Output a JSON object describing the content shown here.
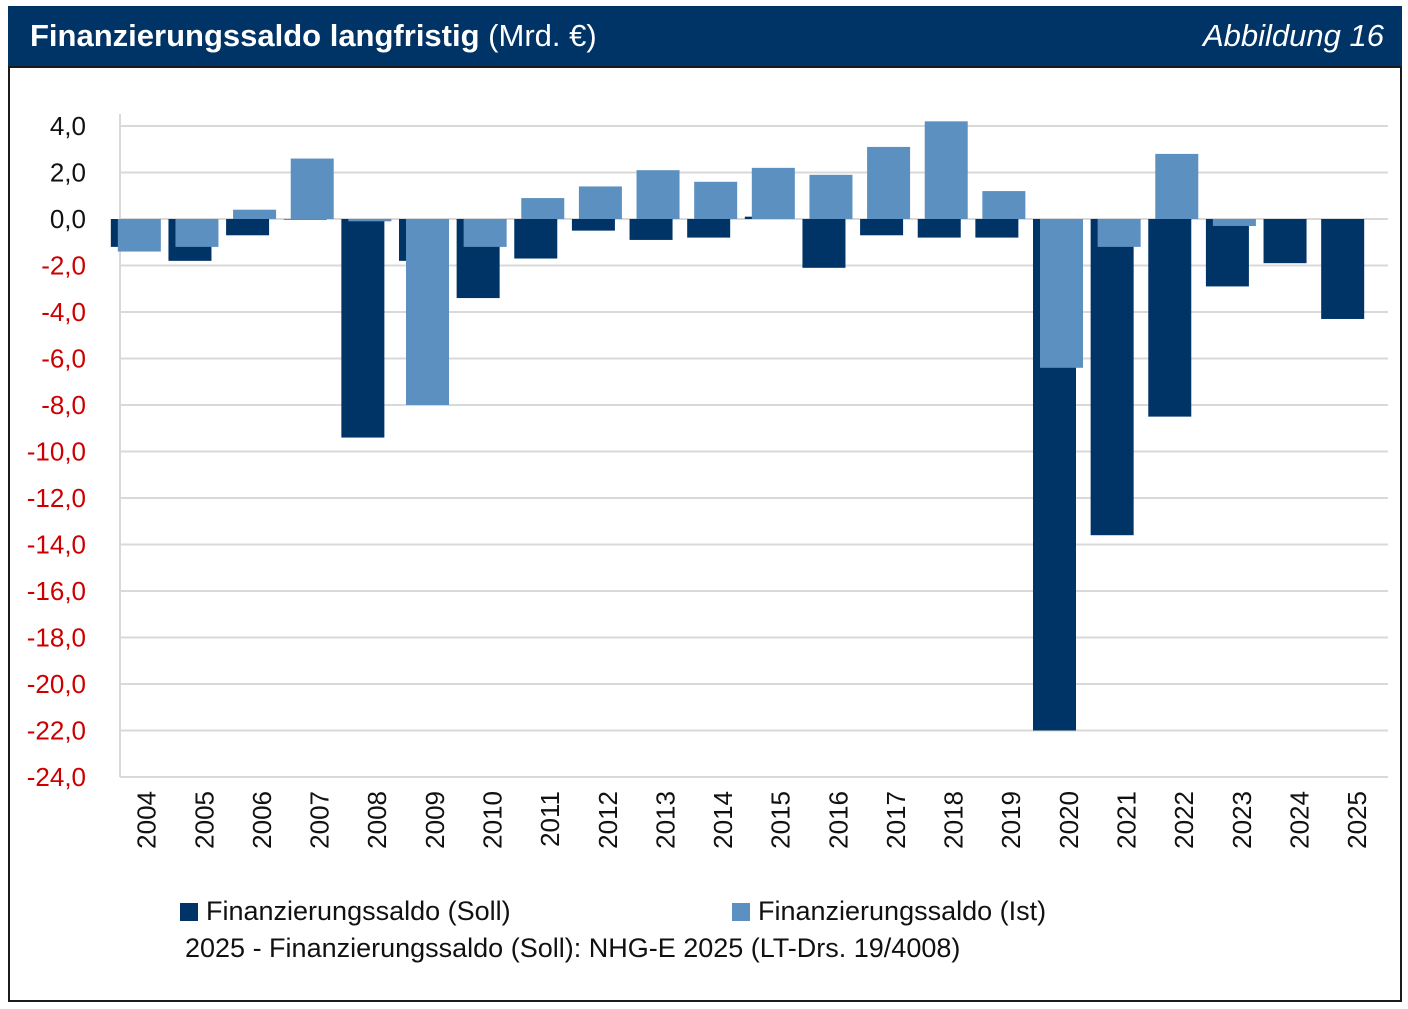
{
  "header": {
    "title_bold": "Finanzierungssaldo langfristig",
    "title_unit": "(Mrd. €)",
    "figure_label": "Abbildung 16"
  },
  "colors": {
    "header_bg": "#003366",
    "soll": "#003466",
    "ist": "#5b90c0",
    "negative_tick": "#cc0000",
    "positive_tick": "#111111",
    "grid": "#d9d9d9"
  },
  "chart_data": {
    "type": "bar",
    "title": "Finanzierungssaldo langfristig (Mrd. €)",
    "xlabel": "",
    "ylabel": "",
    "ylim": [
      -24,
      4
    ],
    "yticks": [
      4,
      2,
      0,
      -2,
      -4,
      -6,
      -8,
      -10,
      -12,
      -14,
      -16,
      -18,
      -20,
      -22,
      -24
    ],
    "ytick_labels": [
      "4,0",
      "2,0",
      "0,0",
      "-2,0",
      "-4,0",
      "-6,0",
      "-8,0",
      "-10,0",
      "-12,0",
      "-14,0",
      "-16,0",
      "-18,0",
      "-20,0",
      "-22,0",
      "-24,0"
    ],
    "grid": true,
    "legend_position": "bottom",
    "categories": [
      "2004",
      "2005",
      "2006",
      "2007",
      "2008",
      "2009",
      "2010",
      "2011",
      "2012",
      "2013",
      "2014",
      "2015",
      "2016",
      "2017",
      "2018",
      "2019",
      "2020",
      "2021",
      "2022",
      "2023",
      "2024",
      "2025"
    ],
    "series": [
      {
        "name": "Finanzierungssaldo (Soll)",
        "values": [
          -1.2,
          -1.8,
          -0.7,
          0.0,
          -9.4,
          -1.8,
          -3.4,
          -1.7,
          -0.5,
          -0.9,
          -0.8,
          0.1,
          -2.1,
          -0.7,
          -0.8,
          -0.8,
          -22.0,
          -13.6,
          -8.5,
          -2.9,
          -1.9,
          -4.3
        ]
      },
      {
        "name": "Finanzierungssaldo (Ist)",
        "values": [
          -1.4,
          -1.2,
          0.4,
          2.6,
          -0.1,
          -8.0,
          -1.2,
          0.9,
          1.4,
          2.1,
          1.6,
          2.2,
          1.9,
          3.1,
          4.2,
          1.2,
          -6.4,
          -1.2,
          2.8,
          -0.3,
          null,
          null
        ]
      }
    ],
    "annotations": [
      "2025 - Finanzierungssaldo (Soll): NHG-E 2025 (LT-Drs. 19/4008)"
    ]
  }
}
